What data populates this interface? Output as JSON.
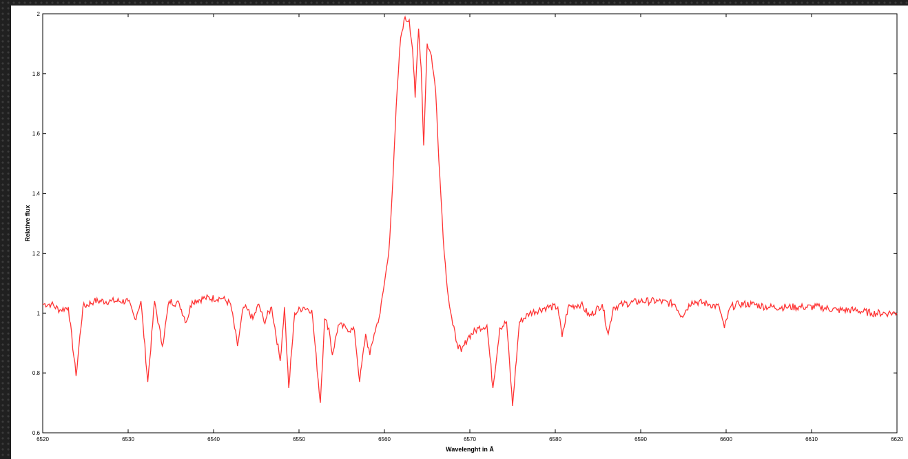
{
  "chart_data": {
    "type": "line",
    "title": "",
    "xlabel": "Wavelenght in Å",
    "ylabel": "Relative flux",
    "xlim": [
      6520,
      6620
    ],
    "ylim": [
      0.6,
      2.0
    ],
    "x_ticks": [
      6520,
      6530,
      6540,
      6550,
      6560,
      6570,
      6580,
      6590,
      6600,
      6610,
      6620
    ],
    "y_ticks": [
      0.6,
      0.8,
      1.0,
      1.2,
      1.4,
      1.6,
      1.8,
      2.0
    ],
    "x_tick_labels": [
      "6520",
      "6530",
      "6540",
      "6550",
      "6560",
      "6570",
      "6580",
      "6590",
      "6600",
      "6610",
      "6620"
    ],
    "y_tick_labels": [
      "0.6",
      "0.8",
      "1",
      "1.2",
      "1.4",
      "1.6",
      "1.8",
      "2"
    ],
    "grid": false,
    "line_color": "#ff3333",
    "series": [
      {
        "x": [
          6520,
          6521,
          6522,
          6523,
          6523.9,
          6524.7,
          6526,
          6528,
          6530,
          6530.8,
          6531.5,
          6532.3,
          6533.1,
          6534,
          6534.8,
          6536,
          6536.8,
          6537.5,
          6539,
          6541,
          6542,
          6542.8,
          6543.5,
          6544,
          6544.6,
          6545.3,
          6545.9,
          6546.8,
          6547.8,
          6548.3,
          6548.8,
          6549.5,
          6550.5,
          6551.5,
          6552.5,
          6553,
          6553.5,
          6553.9,
          6554.6,
          6555.5,
          6556.5,
          6557.1,
          6557.8,
          6558.3,
          6558.8,
          6559.5,
          6560,
          6560.5,
          6561,
          6561.5,
          6561.9,
          6562.3,
          6562.9,
          6563.3,
          6563.6,
          6564,
          6564.3,
          6564.6,
          6565,
          6565.5,
          6566,
          6566.5,
          6567,
          6567.5,
          6568,
          6568.5,
          6569,
          6569.8,
          6571,
          6572,
          6572.7,
          6573.5,
          6574.3,
          6575,
          6575.8,
          6577,
          6579,
          6580.3,
          6580.8,
          6581.5,
          6583,
          6584,
          6585.5,
          6586.2,
          6586.8,
          6588,
          6590,
          6592,
          6594,
          6594.8,
          6596,
          6598,
          6599.2,
          6599.8,
          6600.5,
          6601.5,
          6603,
          6605,
          6607,
          6609,
          6611,
          6613,
          6615,
          6617,
          6619,
          6620
        ],
        "values": [
          1.03,
          1.03,
          1.01,
          1.02,
          0.79,
          1.02,
          1.04,
          1.04,
          1.04,
          0.98,
          1.04,
          0.77,
          1.04,
          0.89,
          1.04,
          1.03,
          0.97,
          1.04,
          1.05,
          1.05,
          1.03,
          0.89,
          1.02,
          1.01,
          0.98,
          1.03,
          0.97,
          1.02,
          0.84,
          1.02,
          0.75,
          1.0,
          1.02,
          1.01,
          0.7,
          0.98,
          0.95,
          0.86,
          0.96,
          0.95,
          0.94,
          0.77,
          0.93,
          0.86,
          0.93,
          1.0,
          1.1,
          1.2,
          1.45,
          1.75,
          1.92,
          1.98,
          1.98,
          1.88,
          1.72,
          1.95,
          1.82,
          1.56,
          1.9,
          1.86,
          1.74,
          1.45,
          1.2,
          1.05,
          0.96,
          0.9,
          0.87,
          0.92,
          0.95,
          0.96,
          0.75,
          0.95,
          0.97,
          0.69,
          0.97,
          1.0,
          1.02,
          1.02,
          0.92,
          1.02,
          1.03,
          0.99,
          1.03,
          0.93,
          1.02,
          1.03,
          1.04,
          1.04,
          1.03,
          0.99,
          1.04,
          1.03,
          1.02,
          0.95,
          1.02,
          1.03,
          1.03,
          1.02,
          1.02,
          1.02,
          1.02,
          1.01,
          1.01,
          1.0,
          1.0,
          1.0
        ]
      }
    ]
  }
}
